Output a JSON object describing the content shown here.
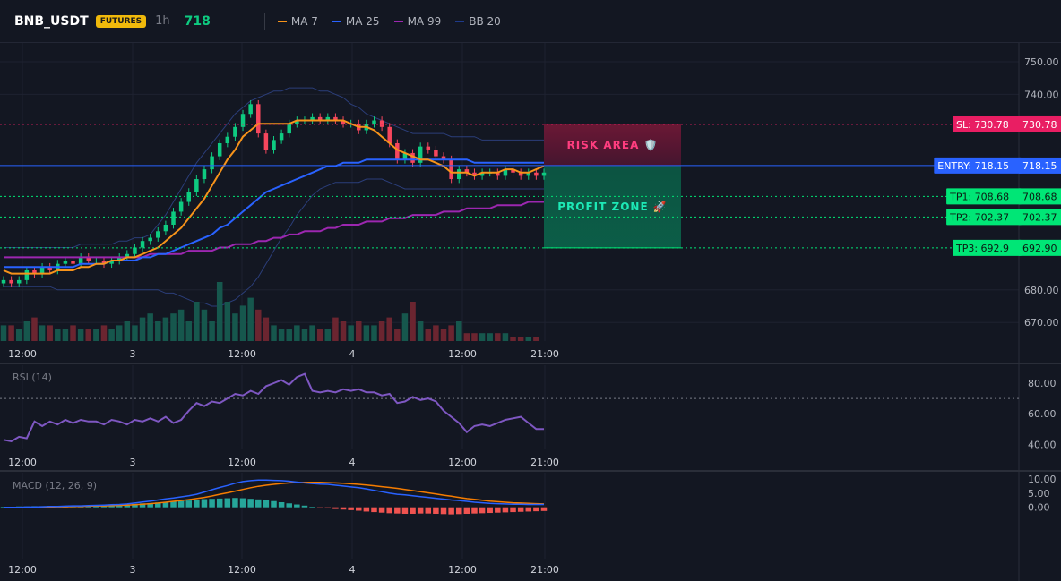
{
  "header": {
    "symbol": "BNB_USDT",
    "badge": "FUTURES",
    "timeframe": "1h",
    "price": "718",
    "indicators": [
      {
        "label": "MA 7",
        "color": "#f7931a"
      },
      {
        "label": "MA 25",
        "color": "#2962ff"
      },
      {
        "label": "MA 99",
        "color": "#9c27b0"
      },
      {
        "label": "BB 20",
        "color": "#1e3a8a"
      }
    ]
  },
  "levels": [
    {
      "key": "sl",
      "value": 730.78,
      "tag": "SL: 730.78",
      "axis": "730.78",
      "color": "#e91e63",
      "style": "dotted"
    },
    {
      "key": "entry",
      "value": 718.15,
      "tag": "ENTRY: 718.15",
      "axis": "718.15",
      "color": "#2962ff",
      "style": "solid"
    },
    {
      "key": "tp1",
      "value": 708.68,
      "tag": "TP1: 708.68",
      "axis": "708.68",
      "color": "#00e676",
      "style": "dotted"
    },
    {
      "key": "tp2",
      "value": 702.37,
      "tag": "TP2: 702.37",
      "axis": "702.37",
      "color": "#00e676",
      "style": "dotted"
    },
    {
      "key": "tp3",
      "value": 692.9,
      "tag": "TP3: 692.9",
      "axis": "692.90",
      "color": "#00e676",
      "style": "dotted"
    }
  ],
  "zones": {
    "risk_label": "RISK AREA 🛡️",
    "profit_label": "PROFIT ZONE 🚀"
  },
  "chart_data": [
    {
      "type": "candlestick",
      "ylim": [
        665,
        755
      ],
      "y_ticks": [
        750,
        740,
        680,
        670
      ],
      "y_tick_labels": [
        "750.00",
        "740.00",
        "680.00",
        "670.00"
      ],
      "x_ticks": [
        "12:00",
        "3",
        "12:00",
        "4",
        "12:00",
        "21:00"
      ],
      "close": [
        683,
        682,
        683,
        686,
        685,
        687,
        686,
        688,
        689,
        688,
        690,
        689,
        689,
        688,
        689,
        690,
        691,
        693,
        695,
        696,
        698,
        700,
        704,
        707,
        710,
        714,
        717,
        721,
        725,
        727,
        730,
        734,
        737,
        728,
        723,
        726,
        728,
        731,
        732,
        732,
        733,
        732,
        733,
        732,
        731,
        731,
        729,
        731,
        732,
        730,
        725,
        720,
        722,
        719,
        724,
        723,
        721,
        720,
        714,
        717,
        716,
        715,
        716,
        716,
        715,
        717,
        716,
        715,
        716,
        715,
        716
      ],
      "ma7": [
        686,
        685,
        685,
        685,
        685,
        685,
        685,
        686,
        686,
        686,
        687,
        687,
        688,
        688,
        689,
        689,
        690,
        690,
        691,
        692,
        693,
        695,
        697,
        699,
        702,
        705,
        708,
        712,
        716,
        720,
        723,
        727,
        729,
        731,
        731,
        731,
        731,
        731,
        732,
        732,
        732,
        732,
        732,
        732,
        732,
        731,
        730,
        730,
        729,
        727,
        725,
        723,
        722,
        721,
        720,
        720,
        719,
        718,
        716,
        716,
        716,
        715,
        716,
        716,
        716,
        717,
        717,
        716,
        716,
        717,
        718
      ],
      "ma25": [
        687,
        687,
        687,
        687,
        687,
        687,
        687,
        687,
        687,
        687,
        688,
        688,
        688,
        688,
        689,
        689,
        689,
        689,
        690,
        690,
        691,
        691,
        692,
        693,
        694,
        695,
        696,
        697,
        699,
        700,
        702,
        704,
        706,
        708,
        710,
        711,
        712,
        713,
        714,
        715,
        716,
        717,
        718,
        718,
        719,
        719,
        719,
        720,
        720,
        720,
        720,
        720,
        720,
        720,
        720,
        720,
        720,
        720,
        720,
        720,
        720,
        719,
        719,
        719,
        719,
        719,
        719,
        719,
        719,
        719,
        719
      ],
      "ma99": [
        690,
        690,
        690,
        690,
        690,
        690,
        690,
        690,
        690,
        690,
        690,
        690,
        690,
        690,
        690,
        690,
        690,
        690,
        690,
        691,
        691,
        691,
        691,
        691,
        692,
        692,
        692,
        692,
        693,
        693,
        694,
        694,
        694,
        695,
        695,
        696,
        696,
        697,
        697,
        698,
        698,
        698,
        699,
        699,
        700,
        700,
        700,
        701,
        701,
        701,
        702,
        702,
        702,
        703,
        703,
        703,
        703,
        704,
        704,
        704,
        705,
        705,
        705,
        705,
        706,
        706,
        706,
        706,
        707,
        707,
        707
      ],
      "bb_upper": [
        693,
        693,
        693,
        693,
        693,
        693,
        693,
        693,
        693,
        693,
        694,
        694,
        694,
        694,
        694,
        695,
        695,
        696,
        696,
        697,
        700,
        703,
        707,
        711,
        715,
        719,
        722,
        725,
        728,
        731,
        734,
        736,
        738,
        739,
        740,
        741,
        741,
        742,
        742,
        742,
        742,
        741,
        741,
        740,
        739,
        737,
        736,
        734,
        733,
        732,
        731,
        730,
        729,
        728,
        728,
        728,
        728,
        728,
        727,
        727,
        727,
        727,
        726,
        726,
        726,
        726,
        726,
        726,
        726,
        726,
        726
      ],
      "bb_lower": [
        681,
        681,
        681,
        681,
        681,
        681,
        681,
        680,
        680,
        680,
        680,
        680,
        680,
        680,
        680,
        680,
        680,
        680,
        680,
        680,
        680,
        679,
        679,
        678,
        677,
        676,
        676,
        675,
        675,
        676,
        677,
        679,
        681,
        684,
        688,
        692,
        696,
        699,
        703,
        706,
        709,
        711,
        712,
        713,
        713,
        713,
        713,
        714,
        714,
        714,
        713,
        712,
        711,
        711,
        711,
        711,
        711,
        711,
        711,
        711,
        711,
        711,
        711,
        711,
        711,
        711,
        711,
        711,
        711,
        711,
        711
      ],
      "volume": [
        4,
        4,
        3,
        5,
        6,
        4,
        4,
        3,
        3,
        4,
        3,
        3,
        3,
        4,
        3,
        4,
        5,
        4,
        6,
        7,
        5,
        6,
        7,
        8,
        5,
        10,
        8,
        5,
        15,
        10,
        7,
        9,
        11,
        8,
        6,
        4,
        3,
        3,
        4,
        3,
        4,
        3,
        3,
        6,
        5,
        4,
        5,
        4,
        4,
        5,
        6,
        3,
        7,
        10,
        5,
        3,
        4,
        3,
        4,
        5,
        2,
        2,
        2,
        2,
        2,
        2,
        1,
        1,
        1,
        1,
        0
      ]
    },
    {
      "type": "line",
      "title": "RSI (14)",
      "ylim": [
        35,
        90
      ],
      "y_ticks": [
        80,
        60,
        40
      ],
      "y_tick_labels": [
        "80.00",
        "60.00",
        "40.00"
      ],
      "x_ticks": [
        "12:00",
        "3",
        "12:00",
        "4",
        "12:00",
        "21:00"
      ],
      "rsi": [
        43,
        42,
        45,
        44,
        55,
        52,
        55,
        53,
        56,
        54,
        56,
        55,
        55,
        53,
        56,
        55,
        53,
        56,
        55,
        57,
        55,
        58,
        54,
        56,
        62,
        67,
        65,
        68,
        67,
        70,
        73,
        72,
        75,
        73,
        78,
        80,
        82,
        79,
        84,
        86,
        75,
        74,
        75,
        74,
        76,
        75,
        76,
        74,
        74,
        72,
        73,
        67,
        68,
        71,
        69,
        70,
        68,
        62,
        58,
        54,
        48,
        52,
        53,
        52,
        54,
        56,
        57,
        58,
        54,
        50,
        50
      ],
      "threshold": 70
    },
    {
      "type": "line",
      "title": "MACD (12, 26, 9)",
      "ylim": [
        -4,
        11
      ],
      "y_ticks": [
        10,
        5,
        0
      ],
      "y_tick_labels": [
        "10.00",
        "5.00",
        "0.00"
      ],
      "x_ticks": [
        "12:00",
        "3",
        "12:00",
        "4",
        "12:00",
        "21:00"
      ],
      "macd": [
        0,
        0,
        0,
        0.1,
        0.1,
        0.2,
        0.3,
        0.3,
        0.4,
        0.5,
        0.5,
        0.6,
        0.7,
        0.8,
        0.9,
        1.0,
        1.2,
        1.5,
        1.9,
        2.2,
        2.6,
        3.0,
        3.3,
        3.7,
        4.1,
        4.6,
        5.4,
        6.2,
        7.0,
        7.7,
        8.5,
        9.1,
        9.4,
        9.6,
        9.6,
        9.5,
        9.4,
        9.2,
        8.9,
        8.6,
        8.4,
        8.2,
        8.1,
        7.8,
        7.5,
        7.2,
        6.9,
        6.5,
        6.0,
        5.5,
        5.0,
        4.6,
        4.4,
        4.1,
        3.8,
        3.5,
        3.2,
        2.9,
        2.6,
        2.4,
        2.1,
        1.8,
        1.6,
        1.4,
        1.3,
        1.2,
        1.1,
        1.1,
        1.0,
        1.0,
        1.0
      ],
      "signal": [
        0,
        0,
        0,
        0,
        0,
        0.1,
        0.1,
        0.2,
        0.2,
        0.3,
        0.3,
        0.4,
        0.5,
        0.5,
        0.6,
        0.7,
        0.8,
        0.9,
        1.1,
        1.3,
        1.5,
        1.8,
        2.1,
        2.4,
        2.7,
        3.1,
        3.5,
        4.0,
        4.6,
        5.1,
        5.7,
        6.3,
        6.9,
        7.4,
        7.8,
        8.1,
        8.4,
        8.6,
        8.7,
        8.8,
        8.8,
        8.8,
        8.7,
        8.6,
        8.5,
        8.3,
        8.1,
        7.9,
        7.6,
        7.3,
        7.0,
        6.7,
        6.3,
        5.9,
        5.5,
        5.1,
        4.7,
        4.3,
        3.9,
        3.5,
        3.1,
        2.8,
        2.5,
        2.2,
        2.0,
        1.8,
        1.6,
        1.5,
        1.4,
        1.3,
        1.2
      ],
      "histogram": [
        0.2,
        0.2,
        0.3,
        0.3,
        0.4,
        0.4,
        0.5,
        0.5,
        0.5,
        0.6,
        0.6,
        0.6,
        0.7,
        0.8,
        0.8,
        0.9,
        1.0,
        1.2,
        1.4,
        1.5,
        1.7,
        1.8,
        2.0,
        2.2,
        2.4,
        2.6,
        2.9,
        3.0,
        3.1,
        3.2,
        3.3,
        3.2,
        3.0,
        2.8,
        2.5,
        2.2,
        1.8,
        1.4,
        1.0,
        0.6,
        0.2,
        -0.2,
        -0.4,
        -0.6,
        -0.8,
        -1.0,
        -1.2,
        -1.5,
        -1.7,
        -1.9,
        -2.1,
        -2.2,
        -2.3,
        -2.3,
        -2.2,
        -2.2,
        -2.3,
        -2.4,
        -2.5,
        -2.4,
        -2.3,
        -2.2,
        -2.1,
        -2.0,
        -1.9,
        -1.8,
        -1.7,
        -1.6,
        -1.5,
        -1.4,
        -1.3
      ]
    }
  ]
}
